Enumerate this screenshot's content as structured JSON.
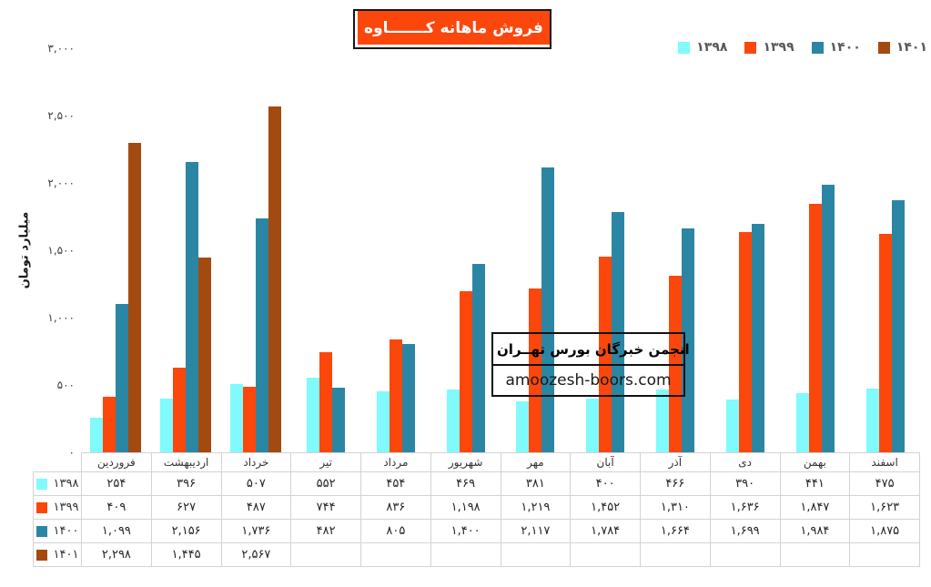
{
  "title": "فروش ماهانه کـــــــاوه",
  "y_axis": {
    "title": "میلیارد تومان",
    "ticks": [
      "۳,۰۰۰",
      "۲,۵۰۰",
      "۲,۰۰۰",
      "۱,۵۰۰",
      "۱,۰۰۰",
      "۵۰۰",
      "۰"
    ],
    "min": 0,
    "max": 3000
  },
  "watermark": {
    "line1": "انجمن خبرگان بورس تهــران",
    "line2": "amoozesh-boors.com"
  },
  "chart_data": {
    "type": "bar",
    "title": "فروش ماهانه کـــــــاوه",
    "xlabel": "",
    "ylabel": "میلیارد تومان",
    "ylim": [
      0,
      3000
    ],
    "grid": false,
    "legend_position": "top-right",
    "categories": [
      "فروردین",
      "اردیبهشت",
      "خرداد",
      "تیر",
      "مرداد",
      "شهریور",
      "مهر",
      "آبان",
      "آذر",
      "دی",
      "بهمن",
      "اسفند"
    ],
    "series": [
      {
        "name": "۱۳۹۸",
        "color": "#80fafc",
        "values": [
          254,
          396,
          507,
          552,
          454,
          469,
          381,
          400,
          466,
          390,
          441,
          475
        ],
        "display": [
          "۲۵۴",
          "۳۹۶",
          "۵۰۷",
          "۵۵۲",
          "۴۵۴",
          "۴۶۹",
          "۳۸۱",
          "۴۰۰",
          "۴۶۶",
          "۳۹۰",
          "۴۴۱",
          "۴۷۵"
        ]
      },
      {
        "name": "۱۳۹۹",
        "color": "#fb470c",
        "values": [
          409,
          627,
          487,
          744,
          836,
          1198,
          1219,
          1452,
          1310,
          1636,
          1847,
          1623
        ],
        "display": [
          "۴۰۹",
          "۶۲۷",
          "۴۸۷",
          "۷۴۴",
          "۸۳۶",
          "۱,۱۹۸",
          "۱,۲۱۹",
          "۱,۴۵۲",
          "۱,۳۱۰",
          "۱,۶۳۶",
          "۱,۸۴۷",
          "۱,۶۲۳"
        ]
      },
      {
        "name": "۱۴۰۰",
        "color": "#2b86a4",
        "values": [
          1099,
          2156,
          1736,
          482,
          805,
          1400,
          2117,
          1784,
          1664,
          1699,
          1984,
          1875
        ],
        "display": [
          "۱,۰۹۹",
          "۲,۱۵۶",
          "۱,۷۳۶",
          "۴۸۲",
          "۸۰۵",
          "۱,۴۰۰",
          "۲,۱۱۷",
          "۱,۷۸۴",
          "۱,۶۶۴",
          "۱,۶۹۹",
          "۱,۹۸۴",
          "۱,۸۷۵"
        ]
      },
      {
        "name": "۱۴۰۱",
        "color": "#a34a10",
        "values": [
          2298,
          1445,
          2567,
          null,
          null,
          null,
          null,
          null,
          null,
          null,
          null,
          null
        ],
        "display": [
          "۲,۲۹۸",
          "۱,۴۴۵",
          "۲,۵۶۷",
          "",
          "",
          "",
          "",
          "",
          "",
          "",
          "",
          ""
        ]
      }
    ]
  }
}
